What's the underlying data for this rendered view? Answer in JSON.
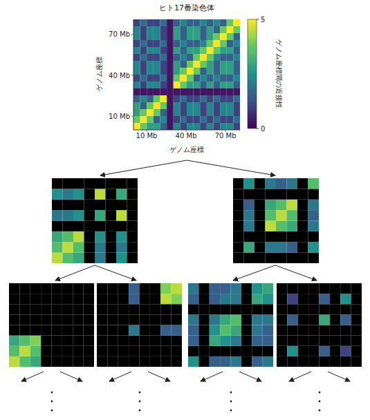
{
  "chart_data": {
    "type": "heatmap",
    "title": "ヒト17番染色体",
    "x_label": "ゲノム座標",
    "y_label": "ゲノム座標",
    "xlim": [
      0,
      81
    ],
    "ylim": [
      0,
      81
    ],
    "xticks": [
      {
        "value": 10,
        "label": "10 Mb"
      },
      {
        "value": 40,
        "label": "40 Mb"
      },
      {
        "value": 70,
        "label": "70 Mb"
      }
    ],
    "yticks": [
      {
        "value": 10,
        "label": "10 Mb"
      },
      {
        "value": 40,
        "label": "40 Mb"
      },
      {
        "value": 70,
        "label": "70 Mb"
      }
    ],
    "cells": [
      [
        5,
        3.8,
        2.8,
        2.8,
        1.5,
        0.3,
        2.3,
        1.0,
        2.3,
        2.3,
        1.0,
        2.3,
        1.0,
        2.3,
        2.3,
        1.0
      ],
      [
        3.8,
        5,
        3.8,
        1.5,
        2.3,
        0.3,
        1.0,
        1.8,
        1.0,
        1.0,
        1.8,
        1.0,
        1.8,
        1.0,
        1.0,
        1.8
      ],
      [
        2.8,
        3.8,
        5,
        3.8,
        1.5,
        0.3,
        2.3,
        1.0,
        2.3,
        2.3,
        1.0,
        2.3,
        1.0,
        2.3,
        2.3,
        1.0
      ],
      [
        2.8,
        1.5,
        3.8,
        5,
        3.8,
        0.3,
        2.3,
        1.0,
        2.3,
        2.3,
        1.0,
        2.3,
        1.0,
        2.3,
        2.3,
        1.0
      ],
      [
        1.5,
        2.3,
        1.5,
        3.8,
        5,
        0.3,
        1.0,
        1.8,
        1.0,
        1.0,
        1.8,
        1.0,
        1.8,
        1.0,
        1.0,
        1.8
      ],
      [
        0.3,
        0.3,
        0.3,
        0.3,
        0.3,
        0.3,
        0.3,
        0.3,
        0.3,
        0.3,
        0.3,
        0.3,
        0.3,
        0.3,
        0.3,
        0.3
      ],
      [
        2.3,
        1.0,
        2.3,
        2.3,
        1.0,
        0.3,
        5,
        3.8,
        2.8,
        2.8,
        1.5,
        2.8,
        1.5,
        2.8,
        2.8,
        1.5
      ],
      [
        1.0,
        1.8,
        1.0,
        1.0,
        1.8,
        0.3,
        3.8,
        5,
        3.8,
        1.5,
        2.3,
        1.5,
        2.3,
        1.5,
        1.5,
        2.3
      ],
      [
        2.3,
        1.0,
        2.3,
        2.3,
        1.0,
        0.3,
        2.8,
        3.8,
        5,
        3.8,
        1.5,
        2.8,
        1.5,
        2.8,
        2.8,
        1.5
      ],
      [
        2.3,
        1.0,
        2.3,
        2.3,
        1.0,
        0.3,
        2.8,
        1.5,
        3.8,
        5,
        3.8,
        2.8,
        1.5,
        2.8,
        2.8,
        1.5
      ],
      [
        1.0,
        1.8,
        1.0,
        1.0,
        1.8,
        0.3,
        1.5,
        2.3,
        1.5,
        3.8,
        5,
        3.8,
        2.3,
        1.5,
        1.5,
        2.3
      ],
      [
        2.3,
        1.0,
        2.3,
        2.3,
        1.0,
        0.3,
        2.8,
        1.5,
        2.8,
        2.8,
        3.8,
        5,
        3.8,
        2.8,
        2.8,
        1.5
      ],
      [
        1.0,
        1.8,
        1.0,
        1.0,
        1.8,
        0.3,
        1.5,
        2.3,
        1.5,
        1.5,
        2.3,
        3.8,
        5,
        3.8,
        1.5,
        2.3
      ],
      [
        2.3,
        1.0,
        2.3,
        2.3,
        1.0,
        0.3,
        2.8,
        1.5,
        2.8,
        2.8,
        1.5,
        2.8,
        3.8,
        5,
        3.8,
        1.5
      ],
      [
        2.3,
        1.0,
        2.3,
        2.3,
        1.0,
        0.3,
        2.8,
        1.5,
        2.8,
        2.8,
        1.5,
        2.8,
        1.5,
        3.8,
        5,
        3.8
      ],
      [
        1.0,
        1.8,
        1.0,
        1.0,
        1.8,
        0.3,
        1.5,
        2.3,
        1.5,
        1.5,
        2.3,
        1.5,
        2.3,
        1.5,
        3.8,
        5
      ]
    ],
    "colorbar": {
      "label": "ゲノム座標間の近接性",
      "range": [
        0,
        5
      ],
      "ticks": [
        0,
        5
      ]
    }
  },
  "decomposition": {
    "level1": [
      {
        "cells": [
          [
            4.5,
            3.5,
            3,
            0,
            2,
            0,
            2.5,
            0
          ],
          [
            3.5,
            4.5,
            3.5,
            0,
            2,
            0,
            2,
            0
          ],
          [
            3,
            3.5,
            4.5,
            0,
            2.5,
            0,
            2.5,
            0
          ],
          [
            0,
            0,
            0,
            0,
            0,
            0,
            0,
            0
          ],
          [
            2,
            2,
            2.5,
            0,
            3,
            0,
            4.5,
            0
          ],
          [
            0,
            0,
            0,
            0,
            0,
            0,
            0,
            0
          ],
          [
            2.5,
            2,
            2.5,
            0,
            4.5,
            0,
            3,
            0
          ],
          [
            0,
            0,
            0,
            0,
            0,
            0,
            0,
            0
          ]
        ]
      },
      {
        "cells": [
          [
            0,
            0,
            0,
            0,
            0,
            0,
            0,
            0
          ],
          [
            0,
            3,
            0,
            2,
            2,
            1.5,
            0,
            2.5
          ],
          [
            0,
            0,
            0,
            0,
            0,
            0,
            0,
            0
          ],
          [
            0,
            2,
            0,
            4.5,
            3.5,
            3,
            0,
            2
          ],
          [
            0,
            2,
            0,
            3.5,
            4.5,
            3.5,
            0,
            1.5
          ],
          [
            0,
            1.5,
            0,
            3,
            3.5,
            4.5,
            0,
            2
          ],
          [
            0,
            0,
            0,
            0,
            0,
            0,
            0,
            0
          ],
          [
            0,
            2.5,
            0,
            2,
            1.5,
            2,
            0,
            3.5
          ]
        ]
      }
    ],
    "level2": [
      {
        "cells": [
          [
            4.5,
            3.5,
            3,
            0,
            0,
            0,
            0,
            0
          ],
          [
            3.5,
            4.5,
            3.5,
            0,
            0,
            0,
            0,
            0
          ],
          [
            3,
            3.5,
            4,
            0,
            0,
            0,
            0,
            0
          ],
          [
            0,
            0,
            0,
            0,
            0,
            0,
            0,
            0
          ],
          [
            0,
            0,
            0,
            0,
            0,
            0,
            0,
            0
          ],
          [
            0,
            0,
            0,
            0,
            0,
            0,
            0,
            0
          ],
          [
            0,
            0,
            0,
            0,
            0,
            0,
            0,
            0
          ],
          [
            0,
            0,
            0,
            0,
            0,
            0,
            0,
            0
          ]
        ]
      },
      {
        "cells": [
          [
            0,
            0,
            0,
            0,
            0,
            0,
            0,
            0
          ],
          [
            0,
            0,
            0,
            0,
            0,
            0,
            0,
            0
          ],
          [
            0,
            0,
            0,
            0,
            0,
            0,
            0,
            0
          ],
          [
            0,
            0,
            0,
            2,
            0,
            0,
            1.5,
            1.5
          ],
          [
            0,
            0,
            0,
            0,
            0,
            0,
            0,
            0
          ],
          [
            0,
            0,
            0,
            0,
            0,
            0,
            0,
            0
          ],
          [
            0,
            0,
            0,
            1.5,
            0,
            0,
            4.5,
            4
          ],
          [
            0,
            0,
            0,
            1.5,
            0,
            0,
            4,
            4.5
          ]
        ]
      },
      {
        "cells": [
          [
            2.5,
            0,
            1.5,
            1.5,
            2,
            0,
            1.5,
            2
          ],
          [
            0,
            0,
            0,
            0,
            0,
            0,
            0,
            0
          ],
          [
            1.5,
            0,
            3,
            2.5,
            2,
            0,
            1.5,
            1.5
          ],
          [
            1.5,
            0,
            2.5,
            3.5,
            3,
            0,
            2,
            1.5
          ],
          [
            2,
            0,
            2,
            3,
            3.5,
            0,
            2,
            2
          ],
          [
            0,
            0,
            0,
            0,
            0,
            0,
            0,
            0
          ],
          [
            1.5,
            0,
            1.5,
            2,
            2,
            0,
            3,
            2.5
          ],
          [
            2,
            0,
            1.5,
            1.5,
            2,
            0,
            2.5,
            3
          ]
        ]
      },
      {
        "cells": [
          [
            0,
            0,
            0,
            0,
            0,
            0,
            0,
            0
          ],
          [
            0,
            2.5,
            0,
            0,
            1.5,
            0,
            1,
            0
          ],
          [
            0,
            0,
            0,
            0,
            0,
            0,
            0,
            0
          ],
          [
            0,
            0,
            0,
            0,
            0,
            0,
            0,
            0
          ],
          [
            0,
            1.5,
            0,
            0,
            3,
            0,
            1.5,
            0
          ],
          [
            0,
            0,
            0,
            0,
            0,
            0,
            0,
            0
          ],
          [
            0,
            1,
            0,
            0,
            1.5,
            0,
            2.5,
            0
          ],
          [
            0,
            0,
            0,
            0,
            0,
            0,
            0,
            0
          ]
        ]
      }
    ]
  }
}
